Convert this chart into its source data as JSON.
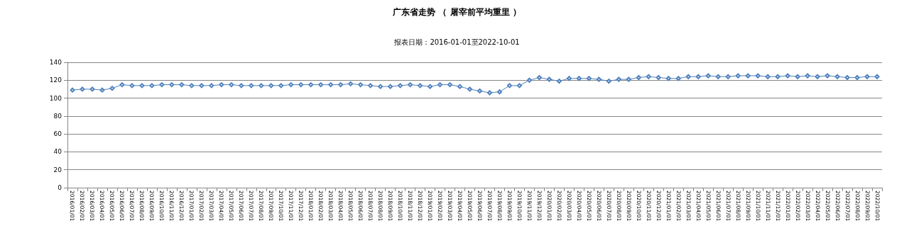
{
  "chart_data": {
    "type": "line",
    "title": "广东省走势 （ 屠宰前平均重里 ）",
    "subtitle": "报表日期：2016-01-01至2022-10-01",
    "categories": [
      "2016/01/01",
      "2016/02/01",
      "2016/03/01",
      "2016/04/01",
      "2016/05/01",
      "2016/06/01",
      "2016/07/01",
      "2016/08/01",
      "2016/09/01",
      "2016/10/01",
      "2016/11/01",
      "2016/12/01",
      "2017/01/01",
      "2017/02/01",
      "2017/03/01",
      "2017/04/01",
      "2017/05/01",
      "2017/06/01",
      "2017/07/01",
      "2017/08/01",
      "2017/09/01",
      "2017/10/01",
      "2017/11/01",
      "2017/12/01",
      "2018/01/01",
      "2018/02/01",
      "2018/03/01",
      "2018/04/01",
      "2018/05/01",
      "2018/06/01",
      "2018/07/01",
      "2018/08/01",
      "2018/09/01",
      "2018/10/01",
      "2018/11/01",
      "2018/12/01",
      "2019/01/01",
      "2019/02/01",
      "2019/03/01",
      "2019/04/01",
      "2019/05/01",
      "2019/06/01",
      "2019/07/01",
      "2019/08/01",
      "2019/09/01",
      "2019/10/01",
      "2019/11/01",
      "2019/12/01",
      "2020/01/01",
      "2020/02/01",
      "2020/03/01",
      "2020/04/01",
      "2020/05/01",
      "2020/06/01",
      "2020/07/01",
      "2020/08/01",
      "2020/09/01",
      "2020/10/01",
      "2020/11/01",
      "2020/12/01",
      "2021/01/01",
      "2021/02/01",
      "2021/03/01",
      "2021/04/01",
      "2021/05/01",
      "2021/06/01",
      "2021/07/01",
      "2021/08/01",
      "2021/09/01",
      "2021/10/01",
      "2021/11/01",
      "2021/12/01",
      "2022/01/01",
      "2022/02/01",
      "2022/03/01",
      "2022/04/01",
      "2022/05/01",
      "2022/06/01",
      "2022/07/01",
      "2022/08/01",
      "2022/09/01",
      "2022/10/01"
    ],
    "series": [
      {
        "color": "#4f81bd",
        "values": [
          109,
          110,
          110,
          109,
          111,
          115,
          114,
          114,
          114,
          115,
          115,
          115,
          114,
          114,
          114,
          115,
          115,
          114,
          114,
          114,
          114,
          114,
          115,
          115,
          115,
          115,
          115,
          115,
          116,
          115,
          114,
          113,
          113,
          114,
          115,
          114,
          113,
          115,
          115,
          113,
          110,
          108,
          106,
          107,
          114,
          114,
          120,
          123,
          121,
          119,
          122,
          122,
          122,
          121,
          119,
          121,
          121,
          123,
          124,
          123,
          122,
          122,
          124,
          124,
          125,
          124,
          124,
          125,
          125,
          125,
          124,
          124,
          125,
          124,
          125,
          124,
          125,
          124,
          123,
          123,
          124,
          124
        ]
      }
    ],
    "ylim": [
      0,
      140
    ],
    "yticks": [
      0,
      20,
      40,
      60,
      80,
      100,
      120,
      140
    ],
    "grid": "y",
    "marker": "diamond",
    "line_style": "solid"
  }
}
